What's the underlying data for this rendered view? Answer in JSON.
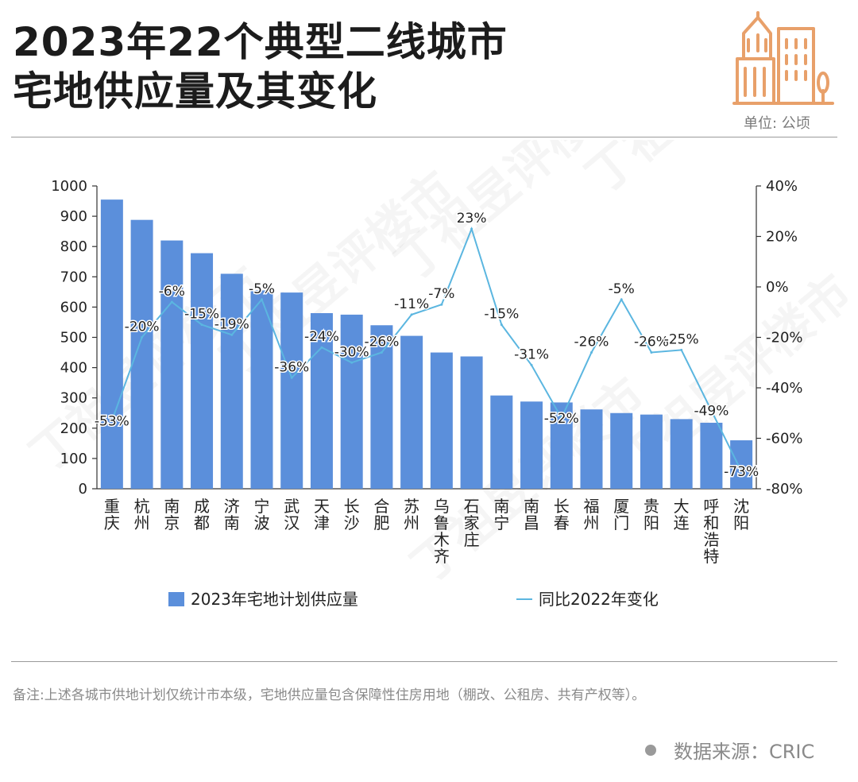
{
  "header": {
    "title_line1": "2023年22个典型二线城市",
    "title_line2": "宅地供应量及其变化",
    "unit": "单位: 公顷"
  },
  "logo": {
    "icon": "city-buildings-icon",
    "color": "#E8A06A"
  },
  "chart_data": {
    "type": "bar+line",
    "categories": [
      "重庆",
      "杭州",
      "南京",
      "成都",
      "济南",
      "宁波",
      "武汉",
      "天津",
      "长沙",
      "合肥",
      "苏州",
      "乌鲁木齐",
      "石家庄",
      "南宁",
      "南昌",
      "长春",
      "福州",
      "厦门",
      "贵阳",
      "大连",
      "呼和浩特",
      "沈阳"
    ],
    "series": [
      {
        "name": "2023年宅地计划供应量",
        "type": "bar",
        "axis": "left",
        "color": "#5B8FDB",
        "values": [
          955,
          888,
          820,
          778,
          710,
          655,
          648,
          580,
          575,
          540,
          505,
          450,
          437,
          308,
          288,
          285,
          262,
          250,
          245,
          230,
          218,
          160
        ]
      },
      {
        "name": "同比2022年变化",
        "type": "line",
        "axis": "right",
        "color": "#5BB6E0",
        "values": [
          -53,
          -20,
          -6,
          -15,
          -19,
          -5,
          -36,
          -24,
          -30,
          -26,
          -11,
          -7,
          23,
          -15,
          -31,
          -52,
          -26,
          -5,
          -26,
          -25,
          -49,
          -73
        ],
        "labels": [
          "-53%",
          "-20%",
          "-6%",
          "-15%",
          "-19%",
          "-5%",
          "-36%",
          "-24%",
          "-30%",
          "-26%",
          "-11%",
          "-7%",
          "23%",
          "-15%",
          "-31%",
          "-52%",
          "-26%",
          "-5%",
          "-26%",
          "-25%",
          "-49%",
          "-73%"
        ]
      }
    ],
    "left_axis": {
      "min": 0,
      "max": 1000,
      "step": 100,
      "ticks": [
        "0",
        "100",
        "200",
        "300",
        "400",
        "500",
        "600",
        "700",
        "800",
        "900",
        "1000"
      ]
    },
    "right_axis": {
      "min": -80,
      "max": 40,
      "step": 20,
      "ticks": [
        "-80%",
        "-60%",
        "-40%",
        "-20%",
        "0%",
        "20%",
        "40%"
      ]
    },
    "legend": {
      "bar_label": "2023年宅地计划供应量",
      "line_label": "同比2022年变化",
      "position": "bottom"
    },
    "watermark": "丁祖昱评楼市"
  },
  "footer": {
    "note": "备注:上述各城市供地计划仅统计市本级，宅地供应量包含保障性住房用地（棚改、公租房、共有产权等）。",
    "source": "数据来源：CRIC"
  }
}
